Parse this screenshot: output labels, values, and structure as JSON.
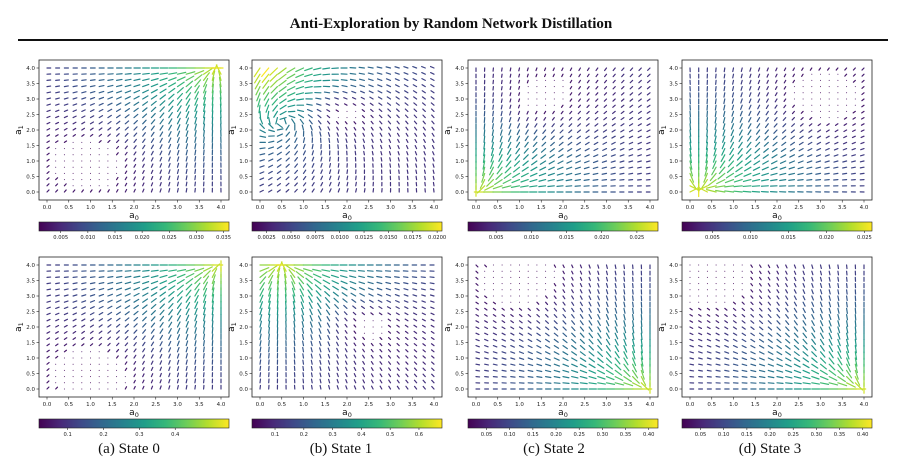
{
  "title": "Anti-Exploration by Random Network Distillation",
  "captions": [
    "(a) State 0",
    "(b) State 1",
    "(c) State 2",
    "(d) State 3"
  ],
  "chart_data": [
    {
      "type": "quiver",
      "state": "0",
      "row": "top",
      "xlabel": "a",
      "xlabel_sub": "0",
      "ylabel": "a",
      "ylabel_sub": "1",
      "xlim": [
        0,
        4
      ],
      "ylim": [
        0,
        4
      ],
      "xticks": [
        "0.0",
        "0.5",
        "1.0",
        "1.5",
        "2.0",
        "2.5",
        "3.0",
        "3.5",
        "4.0"
      ],
      "yticks": [
        "0.0",
        "0.5",
        "1.0",
        "1.5",
        "2.0",
        "2.5",
        "3.0",
        "3.5",
        "4.0"
      ],
      "colorbar": {
        "min": 0.001,
        "max": 0.036,
        "ticks": [
          "0.005",
          "0.010",
          "0.015",
          "0.020",
          "0.025",
          "0.030",
          "0.035"
        ]
      },
      "field": {
        "hotspot": [
          3.9,
          4.0
        ],
        "low": [
          1.0,
          1.0
        ],
        "mode": "toward-hotspot"
      }
    },
    {
      "type": "quiver",
      "state": "1",
      "row": "top",
      "xlabel": "a",
      "xlabel_sub": "0",
      "ylabel": "a",
      "ylabel_sub": "1",
      "xlim": [
        0,
        4
      ],
      "ylim": [
        0,
        4
      ],
      "xticks": [
        "0.0",
        "0.5",
        "1.0",
        "1.5",
        "2.0",
        "2.5",
        "3.0",
        "3.5",
        "4.0"
      ],
      "yticks": [
        "0.0",
        "0.5",
        "1.0",
        "1.5",
        "2.0",
        "2.5",
        "3.0",
        "3.5",
        "4.0"
      ],
      "colorbar": {
        "min": 0.001,
        "max": 0.0205,
        "ticks": [
          "0.0025",
          "0.0050",
          "0.0075",
          "0.0100",
          "0.0125",
          "0.0150",
          "0.0175",
          "0.0200"
        ]
      },
      "field": {
        "hotspot": [
          0.2,
          4.0
        ],
        "low": [
          2.0,
          2.5
        ],
        "mode": "swirl"
      }
    },
    {
      "type": "quiver",
      "state": "2",
      "row": "top",
      "xlabel": "a",
      "xlabel_sub": "0",
      "ylabel": "a",
      "ylabel_sub": "1",
      "xlim": [
        0,
        4
      ],
      "ylim": [
        0,
        4
      ],
      "xticks": [
        "0.0",
        "0.5",
        "1.0",
        "1.5",
        "2.0",
        "2.5",
        "3.0",
        "3.5",
        "4.0"
      ],
      "yticks": [
        "0.0",
        "0.5",
        "1.0",
        "1.5",
        "2.0",
        "2.5",
        "3.0",
        "3.5",
        "4.0"
      ],
      "colorbar": {
        "min": 0.001,
        "max": 0.028,
        "ticks": [
          "0.005",
          "0.010",
          "0.015",
          "0.020",
          "0.025"
        ]
      },
      "field": {
        "hotspot": [
          0.0,
          0.0
        ],
        "low": [
          1.5,
          3.0
        ],
        "mode": "toward-hotspot"
      }
    },
    {
      "type": "quiver",
      "state": "3",
      "row": "top",
      "xlabel": "a",
      "xlabel_sub": "0",
      "ylabel": "a",
      "ylabel_sub": "1",
      "xlim": [
        0,
        4
      ],
      "ylim": [
        0,
        4
      ],
      "xticks": [
        "0.0",
        "0.5",
        "1.0",
        "1.5",
        "2.0",
        "2.5",
        "3.0",
        "3.5",
        "4.0"
      ],
      "yticks": [
        "0.0",
        "0.5",
        "1.0",
        "1.5",
        "2.0",
        "2.5",
        "3.0",
        "3.5",
        "4.0"
      ],
      "colorbar": {
        "min": 0.001,
        "max": 0.026,
        "ticks": [
          "0.005",
          "0.010",
          "0.015",
          "0.020",
          "0.025"
        ]
      },
      "field": {
        "hotspot": [
          0.2,
          0.1
        ],
        "low": [
          3.0,
          3.0
        ],
        "mode": "toward-hotspot"
      }
    },
    {
      "type": "quiver",
      "state": "0",
      "row": "bottom",
      "xlabel": "a",
      "xlabel_sub": "0",
      "ylabel": "a",
      "ylabel_sub": "1",
      "xlim": [
        0,
        4
      ],
      "ylim": [
        0,
        4
      ],
      "xticks": [
        "0.0",
        "0.5",
        "1.0",
        "1.5",
        "2.0",
        "2.5",
        "3.0",
        "3.5",
        "4.0"
      ],
      "yticks": [
        "0.0",
        "0.5",
        "1.0",
        "1.5",
        "2.0",
        "2.5",
        "3.0",
        "3.5",
        "4.0"
      ],
      "colorbar": {
        "min": 0.02,
        "max": 0.55,
        "ticks": [
          "0.1",
          "0.2",
          "0.3",
          "0.4"
        ]
      },
      "field": {
        "hotspot": [
          4.0,
          4.0
        ],
        "low": [
          1.0,
          0.5
        ],
        "mode": "toward-hotspot"
      }
    },
    {
      "type": "quiver",
      "state": "1",
      "row": "bottom",
      "xlabel": "a",
      "xlabel_sub": "0",
      "ylabel": "a",
      "ylabel_sub": "1",
      "xlim": [
        0,
        4
      ],
      "ylim": [
        0,
        4
      ],
      "xticks": [
        "0.0",
        "0.5",
        "1.0",
        "1.5",
        "2.0",
        "2.5",
        "3.0",
        "3.5",
        "4.0"
      ],
      "yticks": [
        "0.0",
        "0.5",
        "1.0",
        "1.5",
        "2.0",
        "2.5",
        "3.0",
        "3.5",
        "4.0"
      ],
      "colorbar": {
        "min": 0.02,
        "max": 0.68,
        "ticks": [
          "0.1",
          "0.2",
          "0.3",
          "0.4",
          "0.5",
          "0.6"
        ]
      },
      "field": {
        "hotspot": [
          0.5,
          4.0
        ],
        "low": [
          2.5,
          2.0
        ],
        "mode": "toward-hotspot"
      }
    },
    {
      "type": "quiver",
      "state": "2",
      "row": "bottom",
      "xlabel": "a",
      "xlabel_sub": "0",
      "ylabel": "a",
      "ylabel_sub": "1",
      "xlim": [
        0,
        4
      ],
      "ylim": [
        0,
        4
      ],
      "xticks": [
        "0.0",
        "0.5",
        "1.0",
        "1.5",
        "2.0",
        "2.5",
        "3.0",
        "3.5",
        "4.0"
      ],
      "yticks": [
        "0.0",
        "0.5",
        "1.0",
        "1.5",
        "2.0",
        "2.5",
        "3.0",
        "3.5",
        "4.0"
      ],
      "colorbar": {
        "min": 0.01,
        "max": 0.42,
        "ticks": [
          "0.05",
          "0.10",
          "0.15",
          "0.20",
          "0.25",
          "0.30",
          "0.35",
          "0.40"
        ]
      },
      "field": {
        "hotspot": [
          4.0,
          0.0
        ],
        "low": [
          1.0,
          3.5
        ],
        "mode": "toward-hotspot"
      }
    },
    {
      "type": "quiver",
      "state": "3",
      "row": "bottom",
      "xlabel": "a",
      "xlabel_sub": "0",
      "ylabel": "a",
      "ylabel_sub": "1",
      "xlim": [
        0,
        4
      ],
      "ylim": [
        0,
        4
      ],
      "xticks": [
        "0.0",
        "0.5",
        "1.0",
        "1.5",
        "2.0",
        "2.5",
        "3.0",
        "3.5",
        "4.0"
      ],
      "yticks": [
        "0.0",
        "0.5",
        "1.0",
        "1.5",
        "2.0",
        "2.5",
        "3.0",
        "3.5",
        "4.0"
      ],
      "colorbar": {
        "min": 0.01,
        "max": 0.42,
        "ticks": [
          "0.05",
          "0.10",
          "0.15",
          "0.20",
          "0.25",
          "0.30",
          "0.35",
          "0.40"
        ]
      },
      "field": {
        "hotspot": [
          4.0,
          0.0
        ],
        "low": [
          0.5,
          3.5
        ],
        "mode": "toward-hotspot"
      }
    }
  ]
}
